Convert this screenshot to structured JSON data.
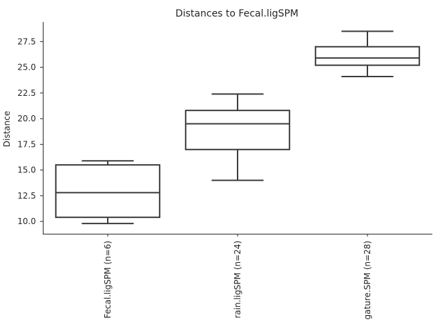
{
  "chart_data": {
    "type": "box",
    "title": "Distances to Fecal.ligSPM",
    "xlabel": "",
    "ylabel": "Distance",
    "ylim": [
      8.8,
      29.4
    ],
    "yticks": [
      "10.0",
      "12.5",
      "15.0",
      "17.5",
      "20.0",
      "22.5",
      "25.0",
      "27.5"
    ],
    "grid": false,
    "categories": [
      "Fecal.ligSPM (n=6)",
      "rain.ligSPM (n=24)",
      "gature.SPM (n=28)"
    ],
    "boxes": [
      {
        "whisker_low": 9.8,
        "q1": 10.4,
        "median": 12.8,
        "q3": 15.5,
        "whisker_high": 15.9
      },
      {
        "whisker_low": 14.0,
        "q1": 17.0,
        "median": 19.5,
        "q3": 20.8,
        "whisker_high": 22.4
      },
      {
        "whisker_low": 24.1,
        "q1": 25.2,
        "median": 25.9,
        "q3": 27.0,
        "whisker_high": 28.5
      }
    ],
    "box_color": "#3a3a3a"
  }
}
